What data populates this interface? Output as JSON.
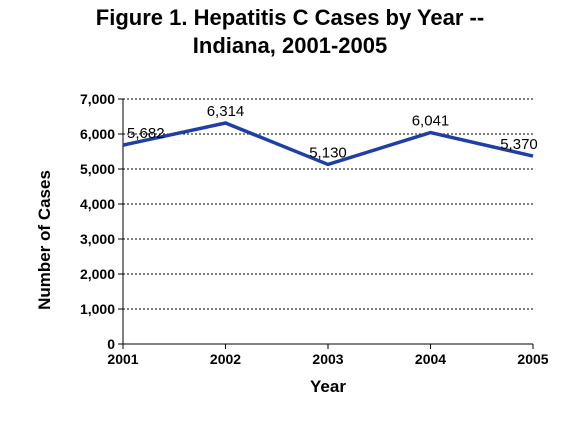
{
  "chart_data": {
    "type": "line",
    "title_line1": "Figure 1. Hepatitis C Cases by Year --",
    "title_line2": "Indiana, 2001-2005",
    "xlabel": "Year",
    "ylabel": "Number of Cases",
    "categories": [
      "2001",
      "2002",
      "2003",
      "2004",
      "2005"
    ],
    "series": [
      {
        "values": [
          5682,
          6314,
          5130,
          6041,
          5370
        ],
        "data_labels": [
          "5,682",
          "6,314",
          "5,130",
          "6,041",
          "5,370"
        ]
      }
    ],
    "ylim": [
      0,
      7000
    ],
    "yticks": [
      0,
      1000,
      2000,
      3000,
      4000,
      5000,
      6000,
      7000
    ],
    "ytick_labels": [
      "0",
      "1,000",
      "2,000",
      "3,000",
      "4,000",
      "5,000",
      "6,000",
      "7,000"
    ],
    "grid": "horizontal dotted",
    "line_color": "#1f3fa6"
  }
}
